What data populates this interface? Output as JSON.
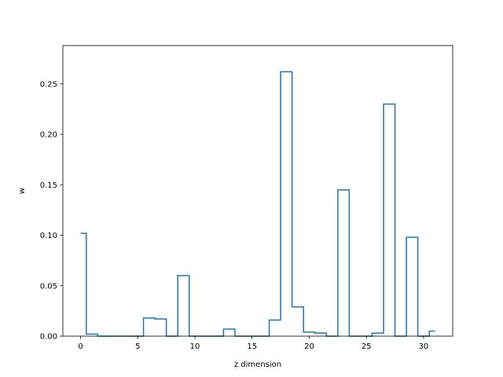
{
  "chart_data": {
    "type": "step",
    "xlabel": "z dimension",
    "ylabel": "w",
    "xlim": [
      -1.55,
      32.55
    ],
    "ylim": [
      0,
      0.288
    ],
    "xticks": [
      0,
      5,
      10,
      15,
      20,
      25,
      30
    ],
    "yticks": [
      0.0,
      0.05,
      0.1,
      0.15,
      0.2,
      0.25
    ],
    "xtick_labels": [
      "0",
      "5",
      "10",
      "15",
      "20",
      "25",
      "30"
    ],
    "ytick_labels": [
      "0.00",
      "0.05",
      "0.10",
      "0.15",
      "0.20",
      "0.25"
    ],
    "grid": false,
    "series": [
      {
        "color": "#1f77b4",
        "step_where": "mid",
        "x": [
          0,
          1,
          2,
          3,
          4,
          5,
          6,
          7,
          8,
          9,
          10,
          11,
          12,
          13,
          14,
          15,
          16,
          17,
          18,
          19,
          20,
          21,
          22,
          23,
          24,
          25,
          26,
          27,
          28,
          29,
          30,
          31
        ],
        "values": [
          0.102,
          0.002,
          0.0,
          0.0,
          0.0,
          0.0,
          0.018,
          0.017,
          0.0,
          0.06,
          0.0,
          0.0,
          0.0,
          0.007,
          0.0,
          0.0,
          0.0,
          0.016,
          0.262,
          0.029,
          0.004,
          0.003,
          0.0,
          0.145,
          0.0,
          0.0,
          0.003,
          0.23,
          0.0,
          0.098,
          0.0,
          0.005
        ]
      }
    ]
  }
}
